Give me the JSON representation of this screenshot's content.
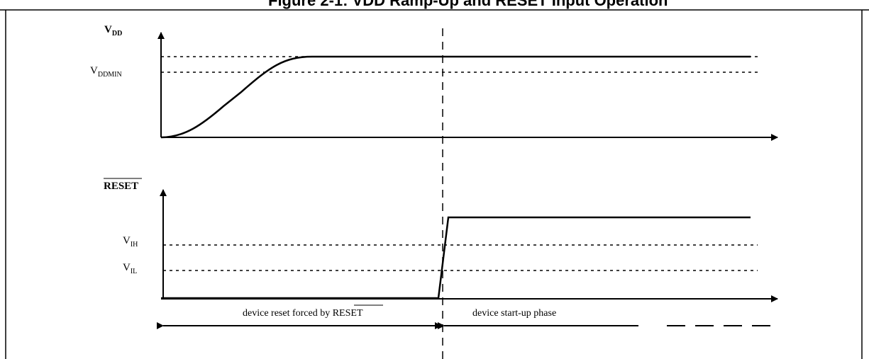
{
  "figure": {
    "title": "Figure 2-1: VDD Ramp-Up and RESET Input Operation"
  },
  "vdd_plot": {
    "axis_label_main": "V",
    "axis_label_sub": "DD",
    "vddmin_main": "V",
    "vddmin_sub": "DDMIN"
  },
  "reset_plot": {
    "axis_label": "RESET",
    "vih_main": "V",
    "vih_sub": "IH",
    "vil_main": "V",
    "vil_sub": "IL"
  },
  "annotations": {
    "reset_phase_prefix": "device reset forced by ",
    "reset_phase_signal": "RESET",
    "startup_phase": "device start-up phase"
  }
}
